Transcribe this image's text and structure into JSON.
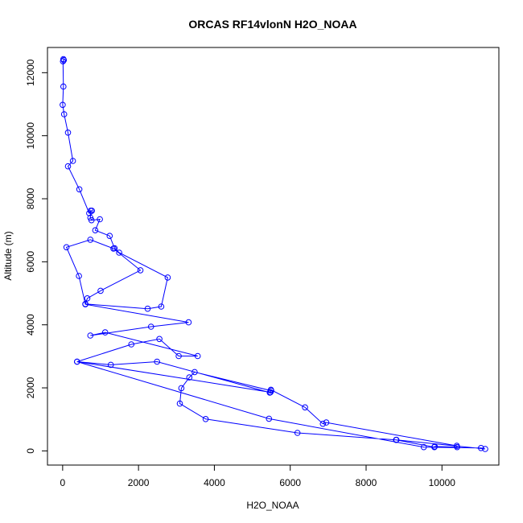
{
  "chart_data": {
    "type": "line",
    "title": "ORCAS RF14vlonN H2O_NOAA",
    "xlabel": "H2O_NOAA",
    "ylabel": "Altitude (m)",
    "xlim": [
      -400,
      11500
    ],
    "ylim": [
      -450,
      12800
    ],
    "xticks": [
      0,
      2000,
      4000,
      6000,
      8000,
      10000
    ],
    "yticks": [
      0,
      2000,
      4000,
      6000,
      8000,
      10000,
      12000
    ],
    "series": [
      {
        "color": "#0000ff",
        "markers": "open-circle",
        "points": [
          [
            20,
            12430
          ],
          [
            30,
            12400
          ],
          [
            10,
            12360
          ],
          [
            20,
            11560
          ],
          [
            0,
            10980
          ],
          [
            40,
            10680
          ],
          [
            140,
            10100
          ],
          [
            270,
            9200
          ],
          [
            140,
            9030
          ],
          [
            440,
            8300
          ],
          [
            700,
            7540
          ],
          [
            770,
            7620
          ],
          [
            740,
            7620
          ],
          [
            730,
            7400
          ],
          [
            760,
            7320
          ],
          [
            980,
            7350
          ],
          [
            860,
            7000
          ],
          [
            1240,
            6820
          ],
          [
            1370,
            6430
          ],
          [
            1490,
            6290
          ],
          [
            2770,
            5500
          ],
          [
            2600,
            4580
          ],
          [
            2240,
            4510
          ],
          [
            600,
            4660
          ],
          [
            650,
            4840
          ],
          [
            1000,
            5080
          ],
          [
            2050,
            5730
          ],
          [
            1340,
            6420
          ],
          [
            730,
            6700
          ],
          [
            100,
            6460
          ],
          [
            430,
            5550
          ],
          [
            600,
            4650
          ],
          [
            3320,
            4080
          ],
          [
            2330,
            3940
          ],
          [
            730,
            3660
          ],
          [
            1120,
            3760
          ],
          [
            3560,
            3010
          ],
          [
            3060,
            3010
          ],
          [
            2550,
            3550
          ],
          [
            1810,
            3380
          ],
          [
            380,
            2830
          ],
          [
            5480,
            1860
          ],
          [
            5490,
            1940
          ],
          [
            6390,
            1380
          ],
          [
            6860,
            860
          ],
          [
            6950,
            900
          ],
          [
            10390,
            160
          ],
          [
            10400,
            120
          ],
          [
            9810,
            140
          ],
          [
            9800,
            120
          ],
          [
            8790,
            350
          ],
          [
            6190,
            570
          ],
          [
            3770,
            1010
          ],
          [
            3090,
            1500
          ],
          [
            3130,
            1990
          ],
          [
            3340,
            2330
          ],
          [
            3480,
            2500
          ],
          [
            5500,
            1910
          ],
          [
            5460,
            1850
          ],
          [
            2490,
            2830
          ],
          [
            1270,
            2730
          ],
          [
            380,
            2830
          ],
          [
            5440,
            1020
          ],
          [
            9520,
            120
          ],
          [
            11030,
            90
          ],
          [
            11140,
            60
          ],
          [
            8800,
            350
          ]
        ]
      }
    ]
  }
}
